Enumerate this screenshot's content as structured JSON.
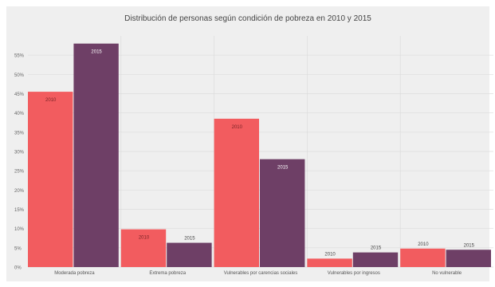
{
  "chart_data": {
    "type": "bar",
    "title": "Distribución de personas según condición de pobreza en 2010 y 2015",
    "categories": [
      "Moderada pobreza",
      "Extrema pobreza",
      "Vulnerables por carencias sociales",
      "Vulnerables por ingresos",
      "No vulnerable"
    ],
    "series": [
      {
        "name": "2010",
        "color": "#f25c5f",
        "values": [
          45.5,
          9.8,
          38.5,
          2.2,
          4.8
        ]
      },
      {
        "name": "2015",
        "color": "#6e3f66",
        "values": [
          58.0,
          6.3,
          28.0,
          3.8,
          4.5
        ]
      }
    ],
    "ylim": [
      0,
      60
    ],
    "yticks": [
      0,
      5,
      10,
      15,
      20,
      25,
      30,
      35,
      40,
      45,
      50,
      55
    ],
    "ytick_labels": [
      "0%",
      "5%",
      "10%",
      "15%",
      "20%",
      "25%",
      "30%",
      "35%",
      "40%",
      "45%",
      "50%",
      "55%"
    ],
    "grid": true,
    "background": "#efefef"
  }
}
